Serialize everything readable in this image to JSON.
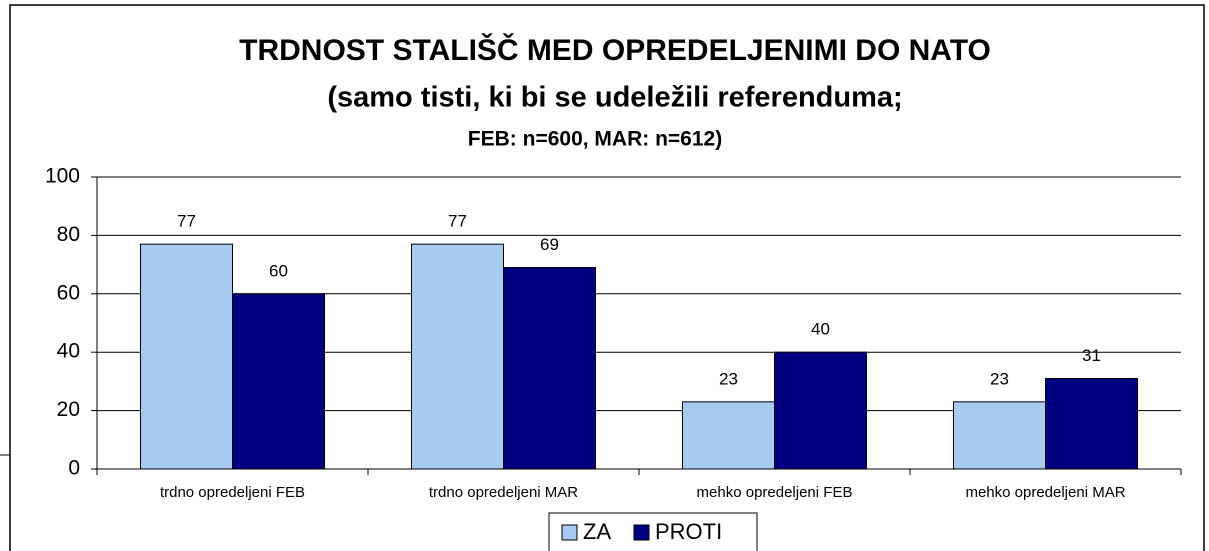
{
  "chart_data": {
    "type": "bar",
    "title": [
      "TRDNOST STALIŠČ MED OPREDELJENIMI DO NATO",
      "(samo tisti, ki bi se udeležili referenduma;",
      "FEB: n=600, MAR: n=612)"
    ],
    "categories": [
      "trdno opredeljeni FEB",
      "trdno opredeljeni MAR",
      "mehko opredeljeni FEB",
      "mehko opredeljeni MAR"
    ],
    "series": [
      {
        "name": "ZA",
        "color": "#a6caf0",
        "values": [
          77,
          77,
          23,
          23
        ]
      },
      {
        "name": "PROTI",
        "color": "#000080",
        "values": [
          60,
          69,
          40,
          31
        ]
      }
    ],
    "ylim": [
      0,
      100
    ],
    "yticks": [
      0,
      20,
      40,
      60,
      80,
      100
    ],
    "grid": true,
    "legend": "bottom"
  }
}
